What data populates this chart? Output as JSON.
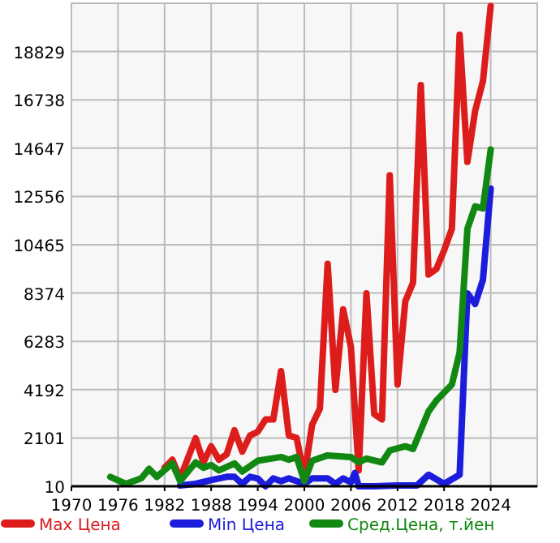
{
  "chart_data": {
    "type": "line",
    "xlim": [
      1970,
      2030
    ],
    "xticks": [
      1970,
      1976,
      1982,
      1988,
      1994,
      2000,
      2006,
      2012,
      2018,
      2024
    ],
    "ylim": [
      10,
      20920
    ],
    "yticks": [
      10,
      2101,
      4192,
      6283,
      8374,
      10465,
      12556,
      14647,
      16738,
      18829
    ],
    "grid": true,
    "legend": "bottom",
    "marker": "none",
    "line_style": "solid",
    "series": [
      {
        "name": "Max Цена",
        "color": "#dd1c1c",
        "x": [
          1982,
          1983,
          1984,
          1986,
          1987,
          1988,
          1989,
          1990,
          1991,
          1992,
          1993,
          1994,
          1995,
          1996,
          1997,
          1998,
          1999,
          2000,
          2001,
          2002,
          2003,
          2004,
          2005,
          2006,
          2007,
          2008,
          2009,
          2010,
          2011,
          2012,
          2013,
          2014,
          2015,
          2016,
          2017,
          2018,
          2019,
          2020,
          2021,
          2022,
          2023,
          2024
        ],
        "values": [
          813,
          1162,
          350,
          2091,
          1045,
          1742,
          1162,
          1394,
          2440,
          1510,
          2207,
          2370,
          2904,
          2904,
          4994,
          2207,
          2100,
          465,
          2672,
          3369,
          9642,
          4182,
          7667,
          6040,
          697,
          8364,
          3137,
          2904,
          13473,
          4414,
          8016,
          8828,
          17378,
          9177,
          9410,
          10222,
          11152,
          19564,
          14055,
          16263,
          17541,
          20800
        ]
      },
      {
        "name": "Min Цена",
        "color": "#1c1cdd",
        "x": [
          1984,
          1986,
          1988,
          1990,
          1991,
          1992,
          1993,
          1994,
          1995,
          1996,
          1997,
          1998,
          2000,
          2001,
          2003,
          2004,
          2005,
          2006,
          2006.5,
          2007,
          2009,
          2012,
          2014.5,
          2016,
          2018,
          2020,
          2021,
          2022,
          2023,
          2024
        ],
        "values": [
          46,
          115,
          279,
          418,
          418,
          115,
          418,
          350,
          10,
          350,
          232,
          350,
          115,
          350,
          350,
          115,
          350,
          186,
          580,
          10,
          10,
          46,
          46,
          511,
          115,
          511,
          8364,
          7900,
          8945,
          12894
        ]
      },
      {
        "name": "Сред.Цена, т.йен",
        "color": "#118811",
        "x": [
          1975,
          1977,
          1979,
          1980,
          1981,
          1983,
          1984,
          1986,
          1987,
          1988,
          1989,
          1991,
          1992,
          1994,
          1997,
          1998,
          1999,
          2000,
          2001,
          2003,
          2006,
          2007,
          2008,
          2010,
          2011,
          2013,
          2014,
          2016,
          2017,
          2019,
          2020,
          2021,
          2022,
          2023,
          2024
        ],
        "values": [
          418,
          115,
          350,
          767,
          418,
          1000,
          232,
          1045,
          813,
          929,
          697,
          1000,
          650,
          1115,
          1277,
          1162,
          1277,
          232,
          1115,
          1347,
          1277,
          1045,
          1208,
          1045,
          1556,
          1742,
          1626,
          3252,
          3717,
          4414,
          5809,
          11152,
          12128,
          12035,
          14590
        ]
      }
    ]
  }
}
